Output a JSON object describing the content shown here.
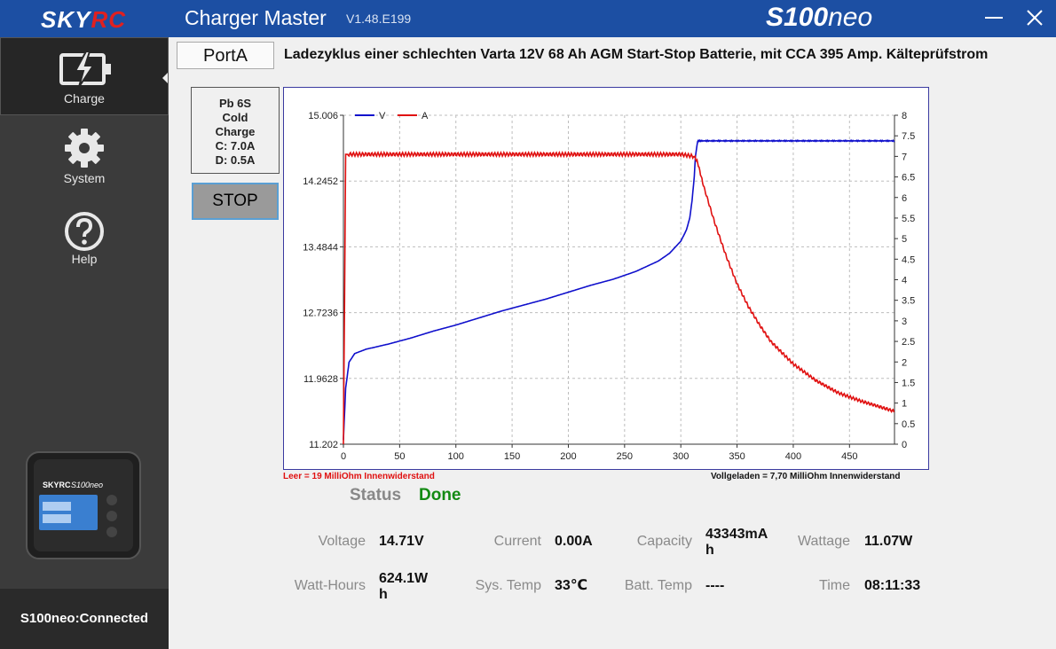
{
  "titlebar": {
    "logo_sky": "SKY",
    "logo_rc": "RC",
    "app_title": "Charger Master",
    "version": "V1.48.E199",
    "model_main": "S100",
    "model_suffix": "neo"
  },
  "sidebar": {
    "items": [
      {
        "label": "Charge"
      },
      {
        "label": "System"
      },
      {
        "label": "Help"
      }
    ],
    "device_brand": "SKYRC",
    "device_model": "S100neo",
    "connection_status": "S100neo:Connected"
  },
  "port": {
    "tab_label": "PortA",
    "description": "Ladezyklus einer schlechten Varta 12V 68 Ah AGM Start-Stop Batterie, mit CCA 395 Amp. Kälteprüfstrom"
  },
  "battery_info": {
    "line1": "Pb 6S",
    "line2": "Cold",
    "line3": "Charge",
    "line4": "C: 7.0A",
    "line5": "D: 0.5A"
  },
  "stop_label": "STOP",
  "notes": {
    "left": "Leer = 19 MilliOhm Innenwiderstand",
    "right": "Vollgeladen = 7,70 MilliOhm Innenwiderstand"
  },
  "status": {
    "label": "Status",
    "value": "Done"
  },
  "stats": {
    "voltage_label": "Voltage",
    "voltage": "14.71V",
    "current_label": "Current",
    "current": "0.00A",
    "capacity_label": "Capacity",
    "capacity_line1": "43343mA",
    "capacity_line2": "h",
    "wattage_label": "Wattage",
    "wattage": "11.07W",
    "watthours_label": "Watt-Hours",
    "watthours_line1": "624.1W",
    "watthours_line2": "h",
    "systemp_label": "Sys. Temp",
    "systemp": "33℃",
    "batttemp_label": "Batt. Temp",
    "batttemp": "----",
    "time_label": "Time",
    "time": "08:11:33"
  },
  "colors": {
    "titlebar": "#1c4fa3",
    "voltage_series": "#1010cc",
    "current_series": "#e01010",
    "status_done": "#138a13"
  },
  "chart_data": {
    "type": "line",
    "xlim": [
      0,
      490
    ],
    "x_ticks": [
      "0",
      "50",
      "100",
      "150",
      "200",
      "250",
      "300",
      "350",
      "400",
      "450"
    ],
    "ylim_left": [
      11.202,
      15.006
    ],
    "y_left_ticks": [
      "15.006",
      "14.2452",
      "13.4844",
      "12.7236",
      "11.9628",
      "11.202"
    ],
    "ylim_right": [
      0,
      8
    ],
    "y_right_ticks": [
      "8",
      "7.5",
      "7",
      "6.5",
      "6",
      "5.5",
      "5",
      "4.5",
      "4",
      "3.5",
      "3",
      "2.5",
      "2",
      "1.5",
      "1",
      "0.5",
      "0"
    ],
    "grid": true,
    "legend_position": "top-left",
    "series": [
      {
        "name": "V",
        "axis": "left",
        "x": [
          0,
          2,
          5,
          10,
          20,
          40,
          60,
          80,
          100,
          120,
          140,
          160,
          180,
          200,
          220,
          240,
          260,
          280,
          290,
          300,
          305,
          308,
          310,
          312,
          313,
          315,
          320,
          350,
          400,
          450,
          490
        ],
        "values": [
          11.25,
          11.85,
          12.15,
          12.25,
          12.3,
          12.36,
          12.43,
          12.51,
          12.58,
          12.66,
          12.74,
          12.81,
          12.88,
          12.96,
          13.04,
          13.11,
          13.2,
          13.32,
          13.41,
          13.55,
          13.68,
          13.82,
          14.02,
          14.3,
          14.53,
          14.71,
          14.71,
          14.71,
          14.71,
          14.71,
          14.71
        ]
      },
      {
        "name": "A",
        "axis": "right",
        "x": [
          0,
          1,
          2,
          5,
          50,
          100,
          150,
          200,
          250,
          300,
          312,
          315,
          320,
          330,
          340,
          350,
          360,
          370,
          380,
          400,
          420,
          440,
          460,
          490
        ],
        "values": [
          0,
          3.5,
          7.05,
          7.05,
          7.05,
          7.05,
          7.05,
          7.05,
          7.05,
          7.05,
          7.0,
          6.85,
          6.3,
          5.4,
          4.6,
          3.9,
          3.35,
          2.9,
          2.5,
          1.95,
          1.55,
          1.25,
          1.05,
          0.8
        ]
      }
    ]
  }
}
